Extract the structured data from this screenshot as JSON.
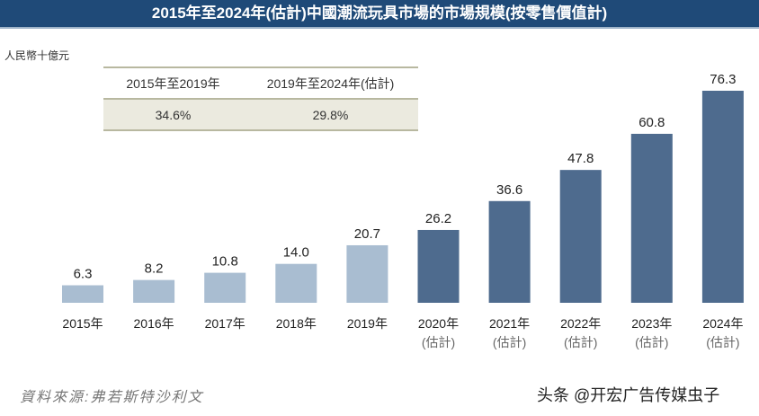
{
  "chart_data": {
    "type": "bar",
    "title": "2015年至2024年(估計)中國潮流玩具市場的市場規模(按零售價值計)",
    "ylabel": "人民幣十億元",
    "categories": [
      "2015年",
      "2016年",
      "2017年",
      "2018年",
      "2019年",
      "2020年",
      "2021年",
      "2022年",
      "2023年",
      "2024年"
    ],
    "sublabels": [
      "",
      "",
      "",
      "",
      "",
      "(估計)",
      "(估計)",
      "(估計)",
      "(估計)",
      "(估計)"
    ],
    "values": [
      6.3,
      8.2,
      10.8,
      14.0,
      20.7,
      26.2,
      36.6,
      47.8,
      60.8,
      76.3
    ],
    "estimated": [
      false,
      false,
      false,
      false,
      false,
      true,
      true,
      true,
      true,
      true
    ],
    "ylim": [
      0,
      78
    ],
    "colors": {
      "actual": "#a9bdd1",
      "estimate": "#4e6b8e"
    },
    "cagr_table": {
      "headers": [
        "2015年至2019年",
        "2019年至2024年(估計)"
      ],
      "values": [
        "34.6%",
        "29.8%"
      ]
    }
  },
  "source": "資料來源:弗若斯特沙利文",
  "watermark": "头条 @开宏广告传媒虫子"
}
